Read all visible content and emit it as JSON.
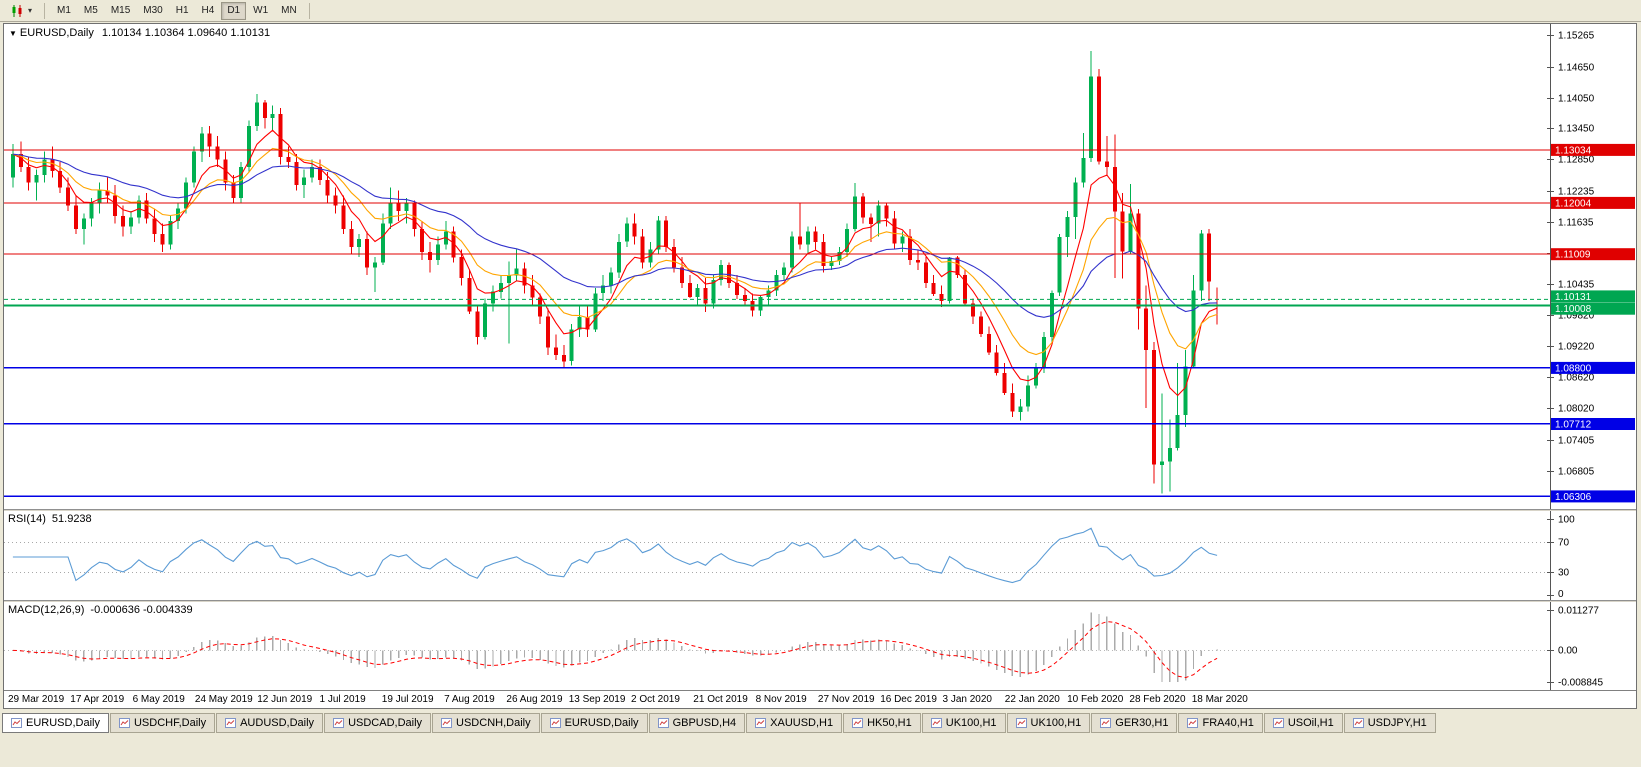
{
  "toolbar": {
    "timeframes": [
      "M1",
      "M5",
      "M15",
      "M30",
      "H1",
      "H4",
      "D1",
      "W1",
      "MN"
    ],
    "active_timeframe": "D1"
  },
  "chart": {
    "title": "EURUSD,Daily",
    "ohlc": "1.10134 1.10364 1.09640 1.10131",
    "price_axis_ticks": [
      "1.15265",
      "1.14650",
      "1.14050",
      "1.13450",
      "1.12850",
      "1.12235",
      "1.11635",
      "1.11035",
      "1.10435",
      "1.09820",
      "1.09220",
      "1.08620",
      "1.08020",
      "1.07405",
      "1.06805"
    ],
    "date_labels": [
      "29 Mar 2019",
      "17 Apr 2019",
      "6 May 2019",
      "24 May 2019",
      "12 Jun 2019",
      "1 Jul 2019",
      "19 Jul 2019",
      "7 Aug 2019",
      "26 Aug 2019",
      "13 Sep 2019",
      "2 Oct 2019",
      "21 Oct 2019",
      "8 Nov 2019",
      "27 Nov 2019",
      "16 Dec 2019",
      "3 Jan 2020",
      "22 Jan 2020",
      "10 Feb 2020",
      "28 Feb 2020",
      "18 Mar 2020"
    ],
    "hlines": [
      {
        "price": 1.13034,
        "label": "1.13034",
        "color": "#E00000",
        "width": 1
      },
      {
        "price": 1.12004,
        "label": "1.12004",
        "color": "#E00000",
        "width": 1
      },
      {
        "price": 1.11009,
        "label": "1.11009",
        "color": "#E00000",
        "width": 1
      },
      {
        "price": 1.10008,
        "label": "1.10008",
        "color": "#00A651",
        "width": 2
      },
      {
        "price": 1.088,
        "label": "1.08800",
        "color": "#0000E6",
        "width": 1.5
      },
      {
        "price": 1.07712,
        "label": "1.07712",
        "color": "#0000E6",
        "width": 1.5
      },
      {
        "price": 1.06306,
        "label": "1.06306",
        "color": "#0000E6",
        "width": 1.5
      }
    ],
    "current_price": {
      "value": 1.10131,
      "label": "1.10131",
      "color": "#00A651"
    }
  },
  "rsi": {
    "label": "RSI(14)",
    "value": "51.9238",
    "levels": [
      "100",
      "70",
      "30",
      "0"
    ],
    "line_color": "#5B9BD5"
  },
  "macd": {
    "label": "MACD(12,26,9)",
    "values": "-0.000636 -0.004339",
    "axis_labels": [
      "0.011277",
      "0.00",
      "-0.008845"
    ],
    "bar_color": "#ABABAB",
    "signal_color": "#FF0000"
  },
  "tabs": [
    {
      "label": "EURUSD,Daily",
      "active": true
    },
    {
      "label": "USDCHF,Daily",
      "active": false
    },
    {
      "label": "AUDUSD,Daily",
      "active": false
    },
    {
      "label": "USDCAD,Daily",
      "active": false
    },
    {
      "label": "USDCNH,Daily",
      "active": false
    },
    {
      "label": "EURUSD,Daily",
      "active": false
    },
    {
      "label": "GBPUSD,H4",
      "active": false
    },
    {
      "label": "XAUUSD,H1",
      "active": false
    },
    {
      "label": "HK50,H1",
      "active": false
    },
    {
      "label": "UK100,H1",
      "active": false
    },
    {
      "label": "UK100,H1",
      "active": false
    },
    {
      "label": "GER30,H1",
      "active": false
    },
    {
      "label": "FRA40,H1",
      "active": false
    },
    {
      "label": "USOil,H1",
      "active": false
    },
    {
      "label": "USDJPY,H1",
      "active": false
    }
  ],
  "chart_data": {
    "type": "candlestick",
    "symbol": "EURUSD",
    "timeframe": "Daily",
    "current_ohlc": {
      "open": 1.10134,
      "high": 1.10364,
      "low": 1.0964,
      "close": 1.10131
    },
    "y_axis": {
      "top": 1.15265,
      "bottom": 1.062
    },
    "x_range": [
      "29 Mar 2019",
      "30 Mar 2020"
    ],
    "up_color": "#00B050",
    "down_color": "#EE0000",
    "moving_averages": [
      {
        "name": "fast",
        "color": "#FF0000"
      },
      {
        "name": "medium",
        "color": "#FFA500"
      },
      {
        "name": "slow",
        "color": "#3333CC"
      }
    ],
    "candles": [
      [
        1.125,
        1.1315,
        1.123,
        1.1295
      ],
      [
        1.1295,
        1.132,
        1.126,
        1.127
      ],
      [
        1.127,
        1.129,
        1.1225,
        1.124
      ],
      [
        1.124,
        1.1265,
        1.1205,
        1.1255
      ],
      [
        1.1255,
        1.13,
        1.124,
        1.1285
      ],
      [
        1.1285,
        1.131,
        1.125,
        1.1262
      ],
      [
        1.1262,
        1.128,
        1.122,
        1.123
      ],
      [
        1.123,
        1.125,
        1.1185,
        1.1195
      ],
      [
        1.1195,
        1.1215,
        1.114,
        1.115
      ],
      [
        1.115,
        1.118,
        1.112,
        1.117
      ],
      [
        1.117,
        1.121,
        1.1155,
        1.12
      ],
      [
        1.12,
        1.124,
        1.118,
        1.1225
      ],
      [
        1.1225,
        1.125,
        1.12,
        1.1215
      ],
      [
        1.1215,
        1.1235,
        1.116,
        1.1175
      ],
      [
        1.1175,
        1.1195,
        1.1135,
        1.1155
      ],
      [
        1.1155,
        1.1185,
        1.114,
        1.1172
      ],
      [
        1.1172,
        1.1215,
        1.116,
        1.1205
      ],
      [
        1.1205,
        1.122,
        1.116,
        1.117
      ],
      [
        1.117,
        1.119,
        1.1125,
        1.114
      ],
      [
        1.114,
        1.116,
        1.1105,
        1.112
      ],
      [
        1.112,
        1.1175,
        1.111,
        1.1165
      ],
      [
        1.1165,
        1.12,
        1.115,
        1.119
      ],
      [
        1.119,
        1.125,
        1.118,
        1.124
      ],
      [
        1.124,
        1.131,
        1.123,
        1.13
      ],
      [
        1.13,
        1.1348,
        1.128,
        1.1335
      ],
      [
        1.1335,
        1.135,
        1.129,
        1.131
      ],
      [
        1.131,
        1.133,
        1.127,
        1.1285
      ],
      [
        1.1285,
        1.13,
        1.1225,
        1.124
      ],
      [
        1.124,
        1.1255,
        1.12,
        1.121
      ],
      [
        1.121,
        1.128,
        1.12,
        1.127
      ],
      [
        1.127,
        1.136,
        1.126,
        1.135
      ],
      [
        1.135,
        1.1412,
        1.134,
        1.1395
      ],
      [
        1.1395,
        1.14,
        1.1345,
        1.1365
      ],
      [
        1.1365,
        1.139,
        1.134,
        1.1373
      ],
      [
        1.1373,
        1.1385,
        1.1275,
        1.129
      ],
      [
        1.129,
        1.131,
        1.1268,
        1.128
      ],
      [
        1.128,
        1.1295,
        1.1225,
        1.1235
      ],
      [
        1.1235,
        1.1265,
        1.121,
        1.125
      ],
      [
        1.125,
        1.1285,
        1.124,
        1.127
      ],
      [
        1.127,
        1.1285,
        1.1235,
        1.1245
      ],
      [
        1.1245,
        1.126,
        1.12,
        1.1215
      ],
      [
        1.1215,
        1.123,
        1.118,
        1.1195
      ],
      [
        1.1195,
        1.1215,
        1.114,
        1.115
      ],
      [
        1.115,
        1.1165,
        1.11,
        1.1115
      ],
      [
        1.1115,
        1.114,
        1.1095,
        1.113
      ],
      [
        1.113,
        1.1145,
        1.106,
        1.1075
      ],
      [
        1.1075,
        1.1095,
        1.1027,
        1.1085
      ],
      [
        1.1085,
        1.118,
        1.108,
        1.116
      ],
      [
        1.116,
        1.123,
        1.115,
        1.12
      ],
      [
        1.12,
        1.1225,
        1.1165,
        1.1185
      ],
      [
        1.1185,
        1.121,
        1.116,
        1.1199
      ],
      [
        1.1199,
        1.1205,
        1.1135,
        1.115
      ],
      [
        1.115,
        1.1165,
        1.109,
        1.1105
      ],
      [
        1.1105,
        1.1125,
        1.1065,
        1.109
      ],
      [
        1.109,
        1.1135,
        1.108,
        1.112
      ],
      [
        1.112,
        1.1165,
        1.111,
        1.1145
      ],
      [
        1.1145,
        1.1155,
        1.1085,
        1.1095
      ],
      [
        1.1095,
        1.111,
        1.104,
        1.1055
      ],
      [
        1.1055,
        1.107,
        1.0985,
        1.099
      ],
      [
        1.099,
        1.1,
        1.0926,
        1.094
      ],
      [
        1.094,
        1.1015,
        1.0935,
        1.1005
      ],
      [
        1.1005,
        1.104,
        1.099,
        1.1028
      ],
      [
        1.1028,
        1.106,
        1.1015,
        1.1045
      ],
      [
        1.1045,
        1.1087,
        1.0927,
        1.106
      ],
      [
        1.106,
        1.111,
        1.105,
        1.1073
      ],
      [
        1.1073,
        1.1085,
        1.1025,
        1.104
      ],
      [
        1.104,
        1.106,
        1.1,
        1.1017
      ],
      [
        1.1017,
        1.1025,
        1.0965,
        1.098
      ],
      [
        1.098,
        1.0995,
        1.0905,
        1.092
      ],
      [
        1.092,
        1.0945,
        1.0895,
        1.0905
      ],
      [
        1.0905,
        1.0925,
        1.0879,
        1.0893
      ],
      [
        1.0893,
        1.0965,
        1.0885,
        1.0955
      ],
      [
        1.0955,
        1.1,
        1.094,
        1.0979
      ],
      [
        1.0979,
        1.1,
        1.094,
        1.0955
      ],
      [
        1.0955,
        1.1035,
        1.095,
        1.1025
      ],
      [
        1.1025,
        1.106,
        1.101,
        1.104
      ],
      [
        1.104,
        1.1075,
        1.1025,
        1.1065
      ],
      [
        1.1065,
        1.114,
        1.1055,
        1.1125
      ],
      [
        1.1125,
        1.1172,
        1.1115,
        1.116
      ],
      [
        1.116,
        1.118,
        1.112,
        1.1135
      ],
      [
        1.1135,
        1.115,
        1.1073,
        1.1085
      ],
      [
        1.1085,
        1.1125,
        1.1075,
        1.111
      ],
      [
        1.111,
        1.1175,
        1.11,
        1.1166
      ],
      [
        1.1166,
        1.1175,
        1.1105,
        1.1115
      ],
      [
        1.1115,
        1.113,
        1.1065,
        1.1075
      ],
      [
        1.1075,
        1.1095,
        1.1035,
        1.1045
      ],
      [
        1.1045,
        1.106,
        1.1016,
        1.1018
      ],
      [
        1.1018,
        1.1043,
        1.1,
        1.1035
      ],
      [
        1.1035,
        1.1055,
        1.0989,
        1.1005
      ],
      [
        1.1005,
        1.106,
        1.0995,
        1.1051
      ],
      [
        1.1051,
        1.109,
        1.104,
        1.108
      ],
      [
        1.108,
        1.1085,
        1.1035,
        1.1045
      ],
      [
        1.1045,
        1.106,
        1.1014,
        1.1022
      ],
      [
        1.1022,
        1.1035,
        1.1,
        1.101
      ],
      [
        1.101,
        1.1025,
        1.098,
        1.0992
      ],
      [
        1.0992,
        1.102,
        1.0981,
        1.1018
      ],
      [
        1.1018,
        1.104,
        1.1003,
        1.103
      ],
      [
        1.103,
        1.107,
        1.102,
        1.106
      ],
      [
        1.106,
        1.1085,
        1.105,
        1.1075
      ],
      [
        1.1075,
        1.1145,
        1.1065,
        1.1135
      ],
      [
        1.1135,
        1.12,
        1.111,
        1.112
      ],
      [
        1.112,
        1.1155,
        1.11,
        1.1145
      ],
      [
        1.1145,
        1.1155,
        1.111,
        1.1125
      ],
      [
        1.1125,
        1.114,
        1.1065,
        1.1078
      ],
      [
        1.1078,
        1.1095,
        1.107,
        1.1088
      ],
      [
        1.1088,
        1.1115,
        1.108,
        1.1105
      ],
      [
        1.1105,
        1.116,
        1.1095,
        1.115
      ],
      [
        1.115,
        1.1239,
        1.1145,
        1.1213
      ],
      [
        1.1213,
        1.122,
        1.116,
        1.1172
      ],
      [
        1.1172,
        1.118,
        1.1125,
        1.116
      ],
      [
        1.116,
        1.1205,
        1.1135,
        1.1195
      ],
      [
        1.1195,
        1.12,
        1.1155,
        1.117
      ],
      [
        1.117,
        1.1185,
        1.111,
        1.1122
      ],
      [
        1.1122,
        1.1145,
        1.1105,
        1.1135
      ],
      [
        1.1135,
        1.115,
        1.108,
        1.109
      ],
      [
        1.109,
        1.111,
        1.107,
        1.1085
      ],
      [
        1.1085,
        1.1095,
        1.1035,
        1.1045
      ],
      [
        1.1045,
        1.106,
        1.102,
        1.1024
      ],
      [
        1.1024,
        1.104,
        1.0998,
        1.101
      ],
      [
        1.101,
        1.1095,
        1.1005,
        1.1094
      ],
      [
        1.1094,
        1.1097,
        1.1055,
        1.106
      ],
      [
        1.106,
        1.107,
        1.1,
        1.1005
      ],
      [
        1.1005,
        1.1015,
        1.0965,
        1.098
      ],
      [
        1.098,
        1.099,
        1.094,
        1.0946
      ],
      [
        1.0946,
        1.096,
        1.0905,
        1.091
      ],
      [
        1.091,
        1.0925,
        1.0865,
        1.087
      ],
      [
        1.087,
        1.089,
        1.0827,
        1.0831
      ],
      [
        1.0831,
        1.085,
        1.0785,
        1.0795
      ],
      [
        1.0795,
        1.082,
        1.0778,
        1.0805
      ],
      [
        1.0805,
        1.0865,
        1.0795,
        1.0846
      ],
      [
        1.0846,
        1.089,
        1.084,
        1.088
      ],
      [
        1.088,
        1.095,
        1.087,
        1.094
      ],
      [
        1.094,
        1.103,
        1.093,
        1.1026
      ],
      [
        1.1026,
        1.114,
        1.102,
        1.1134
      ],
      [
        1.1134,
        1.1185,
        1.1095,
        1.1173
      ],
      [
        1.1173,
        1.125,
        1.113,
        1.124
      ],
      [
        1.124,
        1.1336,
        1.123,
        1.1288
      ],
      [
        1.1288,
        1.1495,
        1.128,
        1.1446
      ],
      [
        1.1446,
        1.146,
        1.1275,
        1.1281
      ],
      [
        1.1281,
        1.133,
        1.1255,
        1.127
      ],
      [
        1.127,
        1.1333,
        1.1055,
        1.1184
      ],
      [
        1.1184,
        1.122,
        1.1054,
        1.1106
      ],
      [
        1.1106,
        1.1237,
        1.11,
        1.118
      ],
      [
        1.118,
        1.1189,
        1.0955,
        1.0995
      ],
      [
        1.0995,
        1.104,
        1.0802,
        1.0915
      ],
      [
        1.0915,
        1.093,
        1.0656,
        1.0692
      ],
      [
        1.0692,
        1.083,
        1.0636,
        1.0698
      ],
      [
        1.0698,
        1.078,
        1.064,
        1.0725
      ],
      [
        1.0725,
        1.089,
        1.072,
        1.0789
      ],
      [
        1.0789,
        1.0915,
        1.0765,
        1.0883
      ],
      [
        1.0883,
        1.106,
        1.088,
        1.103
      ],
      [
        1.103,
        1.1148,
        1.101,
        1.1141
      ],
      [
        1.1141,
        1.115,
        1.101,
        1.1048
      ],
      [
        1.10134,
        1.10364,
        1.0964,
        1.10131
      ]
    ]
  }
}
